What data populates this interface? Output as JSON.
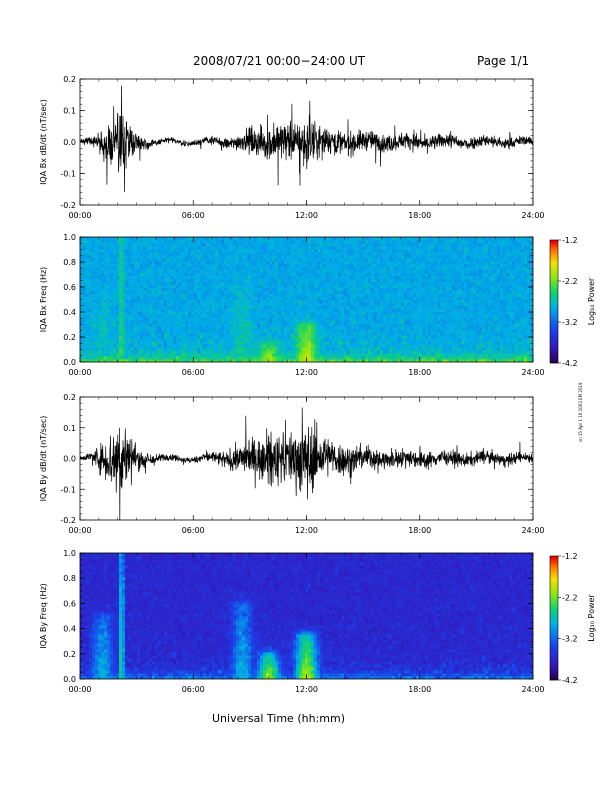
{
  "header": {
    "title": "2008/07/21  00:00−24:00 UT",
    "page": "Page 1/1"
  },
  "side_note": "sn 15 Apr 1 10:1003 EM 2019",
  "xlabel": "Universal Time (hh:mm)",
  "x_ticks": [
    "00:00",
    "06:00",
    "12:00",
    "18:00",
    "24:00"
  ],
  "colorbar": {
    "label": "Log₁₀ Power",
    "ticks": [
      "-1.2",
      "-2.2",
      "-3.2",
      "-4.2"
    ],
    "range": [
      -4.2,
      -1.2
    ]
  },
  "chart_data": [
    {
      "type": "line",
      "ylabel": "IQA Bx dB/dt (nT/sec)",
      "xlim": [
        0,
        24
      ],
      "ylim": [
        -0.2,
        0.2
      ],
      "y_ticks": [
        "0.2",
        "0.1",
        "0.0",
        "-0.1",
        "-0.2"
      ],
      "envelope": {
        "x_hours": [
          0,
          0.5,
          1.0,
          1.5,
          1.8,
          2.0,
          2.2,
          2.5,
          3.0,
          4.0,
          5.0,
          6.0,
          7.0,
          8.0,
          9.0,
          10.0,
          10.5,
          11.0,
          11.5,
          12.0,
          12.5,
          13.0,
          14.0,
          15.0,
          16.0,
          17.0,
          18.0,
          19.0,
          20.0,
          21.0,
          22.0,
          23.0,
          24.0
        ],
        "amplitude": [
          0.01,
          0.02,
          0.04,
          0.09,
          0.15,
          0.2,
          0.2,
          0.12,
          0.04,
          0.015,
          0.012,
          0.015,
          0.02,
          0.03,
          0.06,
          0.08,
          0.1,
          0.09,
          0.1,
          0.12,
          0.09,
          0.07,
          0.06,
          0.05,
          0.045,
          0.04,
          0.04,
          0.035,
          0.035,
          0.03,
          0.03,
          0.025,
          0.02
        ]
      }
    },
    {
      "type": "heatmap",
      "ylabel": "IQA Bx Freq (Hz)",
      "xlim": [
        0,
        24
      ],
      "ylim": [
        0,
        1.0
      ],
      "y_ticks": [
        "1.0",
        "0.8",
        "0.6",
        "0.4",
        "0.2",
        "0.0"
      ],
      "background_log_power": -3.0,
      "features": [
        {
          "x_hours": 2.2,
          "f_max": 1.0,
          "log_power": -2.4
        },
        {
          "x_hours": 1.2,
          "f_max": 0.5,
          "log_power": -2.7
        },
        {
          "x_hours": 10.0,
          "f_max": 0.15,
          "log_power": -2.0
        },
        {
          "x_hours": 12.0,
          "f_max": 0.3,
          "log_power": -1.9
        },
        {
          "x_hours": 8.6,
          "f_max": 0.6,
          "log_power": -2.6
        }
      ]
    },
    {
      "type": "line",
      "ylabel": "IQA By dB/dt (nT/sec)",
      "xlim": [
        0,
        24
      ],
      "ylim": [
        -0.2,
        0.2
      ],
      "y_ticks": [
        "0.2",
        "0.1",
        "0.0",
        "-0.1",
        "-0.2"
      ],
      "envelope": {
        "x_hours": [
          0,
          0.5,
          1.0,
          1.5,
          1.8,
          2.0,
          2.2,
          2.5,
          3.0,
          4.0,
          5.0,
          6.0,
          7.0,
          8.0,
          9.0,
          10.0,
          10.5,
          11.0,
          11.5,
          12.0,
          12.5,
          13.0,
          14.0,
          15.0,
          16.0,
          17.0,
          18.0,
          19.0,
          20.0,
          21.0,
          22.0,
          23.0,
          24.0
        ],
        "amplitude": [
          0.01,
          0.02,
          0.06,
          0.12,
          0.18,
          0.2,
          0.2,
          0.14,
          0.06,
          0.025,
          0.015,
          0.015,
          0.03,
          0.05,
          0.09,
          0.12,
          0.14,
          0.13,
          0.15,
          0.2,
          0.14,
          0.1,
          0.08,
          0.06,
          0.05,
          0.045,
          0.045,
          0.04,
          0.035,
          0.035,
          0.03,
          0.03,
          0.025
        ]
      }
    },
    {
      "type": "heatmap",
      "ylabel": "IQA By Freq (Hz)",
      "xlim": [
        0,
        24
      ],
      "ylim": [
        0,
        1.0
      ],
      "y_ticks": [
        "1.0",
        "0.8",
        "0.6",
        "0.4",
        "0.2",
        "0.0"
      ],
      "background_log_power": -3.8,
      "features": [
        {
          "x_hours": 2.2,
          "f_max": 1.0,
          "log_power": -2.4
        },
        {
          "x_hours": 1.2,
          "f_max": 0.5,
          "log_power": -2.8
        },
        {
          "x_hours": 10.0,
          "f_max": 0.2,
          "log_power": -2.0
        },
        {
          "x_hours": 12.0,
          "f_max": 0.35,
          "log_power": -1.9
        },
        {
          "x_hours": 8.6,
          "f_max": 0.6,
          "log_power": -2.8
        }
      ]
    }
  ]
}
